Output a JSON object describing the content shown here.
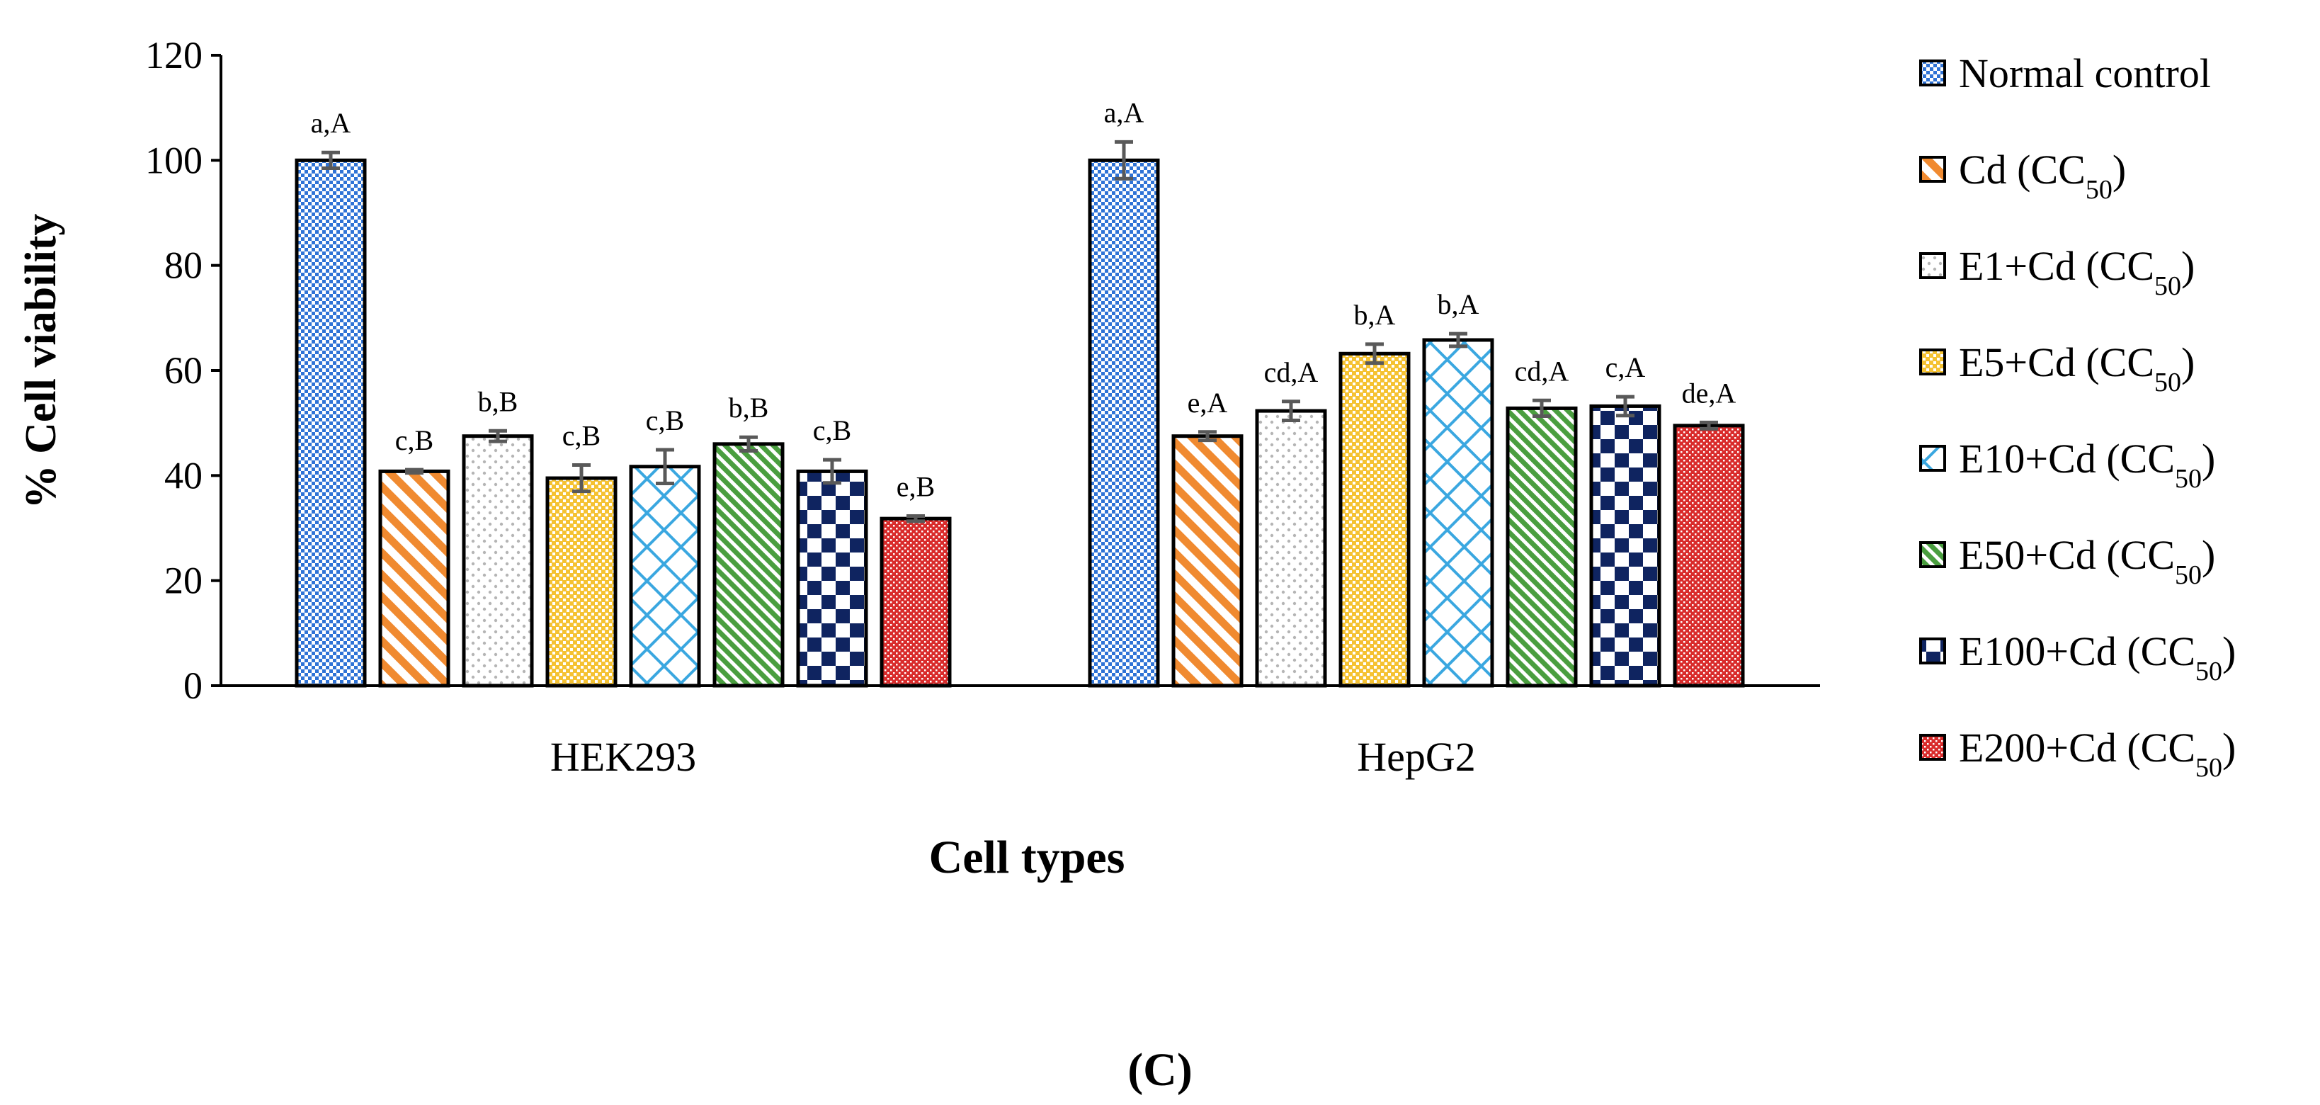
{
  "chart_data": {
    "type": "bar",
    "title": "",
    "xlabel": "Cell types",
    "ylabel": "% Cell viability",
    "panel_label": "(C)",
    "ylim": [
      0,
      120
    ],
    "yticks": [
      "0",
      "20",
      "40",
      "60",
      "80",
      "100",
      "120"
    ],
    "grid": false,
    "legend_position": "right",
    "categories": [
      "HEK293",
      "HepG2"
    ],
    "series": [
      {
        "name": "Normal control",
        "name_sub": "",
        "name_tail": "",
        "pattern": "checker-blue",
        "color": "#2f73d6",
        "values": [
          100,
          100
        ],
        "errors": [
          1.5,
          3.5
        ],
        "labels": [
          "a,A",
          "a,A"
        ]
      },
      {
        "name": "Cd (CC",
        "name_sub": "50",
        "name_tail": ")",
        "pattern": "diag-orange",
        "color": "#f08a30",
        "values": [
          40.8,
          47.5
        ],
        "errors": [
          0.3,
          0.8
        ],
        "labels": [
          "c,B",
          "e,A"
        ]
      },
      {
        "name": "E1+Cd (CC",
        "name_sub": "50",
        "name_tail": ")",
        "pattern": "dots-gray",
        "color": "#b8b8b8",
        "values": [
          47.5,
          52.3
        ],
        "errors": [
          1.0,
          1.8
        ],
        "labels": [
          "b,B",
          "cd,A"
        ]
      },
      {
        "name": "E5+Cd (CC",
        "name_sub": "50",
        "name_tail": ")",
        "pattern": "grid-yellow",
        "color": "#f5c232",
        "values": [
          39.5,
          63.2
        ],
        "errors": [
          2.5,
          1.8
        ],
        "labels": [
          "c,B",
          "b,A"
        ]
      },
      {
        "name": "E10+Cd (CC",
        "name_sub": "50",
        "name_tail": ")",
        "pattern": "lattice-lightblue",
        "color": "#3aa7e0",
        "values": [
          41.7,
          65.8
        ],
        "errors": [
          3.2,
          1.2
        ],
        "labels": [
          "c,B",
          "b,A"
        ]
      },
      {
        "name": "E50+Cd (CC",
        "name_sub": "50",
        "name_tail": ")",
        "pattern": "diag-green",
        "color": "#4a9e3f",
        "values": [
          46.0,
          52.8
        ],
        "errors": [
          1.3,
          1.5
        ],
        "labels": [
          "b,B",
          "cd,A"
        ]
      },
      {
        "name": "E100+Cd (CC",
        "name_sub": "50",
        "name_tail": ")",
        "pattern": "checker-navy",
        "color": "#0f2460",
        "values": [
          40.8,
          53.2
        ],
        "errors": [
          2.2,
          1.8
        ],
        "labels": [
          "c,B",
          "c,A"
        ]
      },
      {
        "name": "E200+Cd (CC",
        "name_sub": "50",
        "name_tail": ")",
        "pattern": "fine-red",
        "color": "#d92b2b",
        "values": [
          31.8,
          49.5
        ],
        "errors": [
          0.5,
          0.6
        ],
        "labels": [
          "e,B",
          "de,A"
        ]
      }
    ]
  }
}
